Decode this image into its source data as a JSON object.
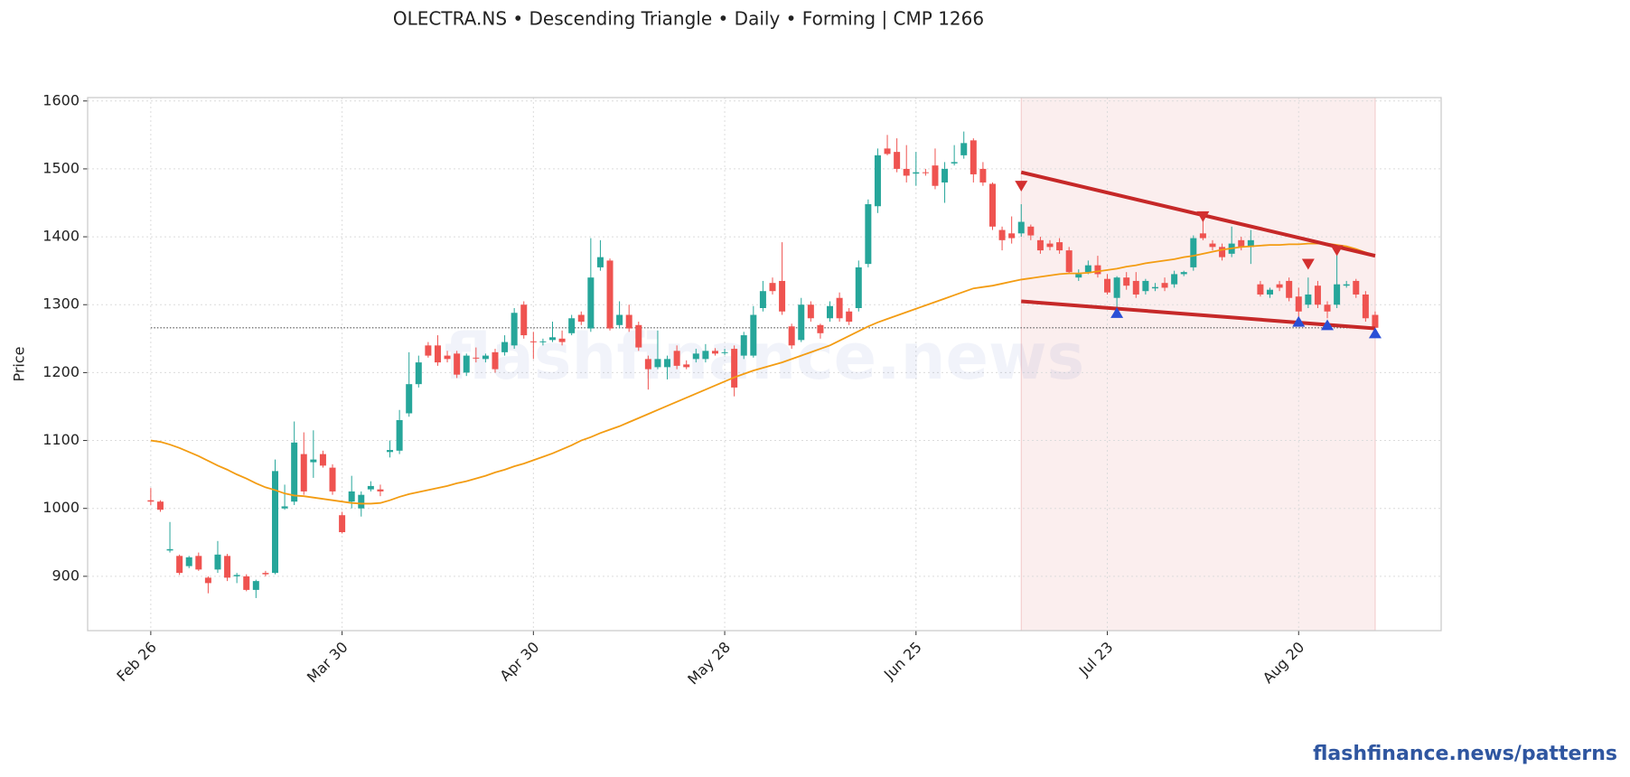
{
  "chart_data": {
    "type": "candlestick",
    "title": "OLECTRA.NS  •  Descending Triangle  •  Daily  •  Forming  |  CMP 1266",
    "ylabel": "Price",
    "watermark": "flashfinance.news",
    "footer": "flashfinance.news/patterns",
    "categories": [
      "Feb 26",
      null,
      null,
      null,
      null,
      null,
      null,
      null,
      null,
      null,
      null,
      null,
      null,
      null,
      null,
      null,
      null,
      null,
      null,
      null,
      "Mar 30",
      null,
      null,
      null,
      null,
      null,
      null,
      null,
      null,
      null,
      null,
      null,
      null,
      null,
      null,
      null,
      null,
      null,
      null,
      null,
      "Apr 30",
      null,
      null,
      null,
      null,
      null,
      null,
      null,
      null,
      null,
      null,
      null,
      null,
      null,
      null,
      null,
      null,
      null,
      null,
      null,
      "May 28",
      null,
      null,
      null,
      null,
      null,
      null,
      null,
      null,
      null,
      null,
      null,
      null,
      null,
      null,
      null,
      null,
      null,
      null,
      null,
      "Jun 25",
      null,
      null,
      null,
      null,
      null,
      null,
      null,
      null,
      null,
      null,
      null,
      null,
      null,
      null,
      null,
      null,
      null,
      null,
      null,
      "Jul 23",
      null,
      null,
      null,
      null,
      null,
      null,
      null,
      null,
      null,
      null,
      null,
      null,
      null,
      null,
      null,
      null,
      null,
      null,
      null,
      "Aug 20",
      null,
      null,
      null,
      null,
      null,
      null,
      null,
      null
    ],
    "open": [
      1012,
      1010,
      938,
      930,
      915,
      930,
      898,
      910,
      930,
      900,
      900,
      880,
      905,
      905,
      1000,
      1010,
      1080,
      1068,
      1080,
      1060,
      990,
      1010,
      1000,
      1028,
      1028,
      1083,
      1085,
      1140,
      1183,
      1240,
      1240,
      1225,
      1228,
      1200,
      1222,
      1220,
      1230,
      1230,
      1240,
      1300,
      1246,
      1245,
      1248,
      1250,
      1258,
      1285,
      1265,
      1355,
      1365,
      1270,
      1285,
      1270,
      1220,
      1208,
      1208,
      1232,
      1212,
      1220,
      1220,
      1232,
      1229,
      1235,
      1225,
      1225,
      1295,
      1332,
      1335,
      1268,
      1248,
      1300,
      1270,
      1280,
      1310,
      1290,
      1295,
      1360,
      1445,
      1530,
      1525,
      1500,
      1493,
      1495,
      1505,
      1480,
      1508,
      1520,
      1542,
      1500,
      1478,
      1410,
      1405,
      1405,
      1415,
      1395,
      1390,
      1392,
      1380,
      1340,
      1348,
      1358,
      1338,
      1310,
      1340,
      1335,
      1320,
      1324,
      1332,
      1330,
      1345,
      1355,
      1405,
      1390,
      1385,
      1375,
      1395,
      1385,
      1330,
      1315,
      1330,
      1335,
      1312,
      1300,
      1328,
      1300,
      1300,
      1328,
      1335,
      1315,
      1285
    ],
    "high": [
      1030,
      1012,
      980,
      932,
      930,
      935,
      900,
      952,
      933,
      905,
      903,
      895,
      908,
      1072,
      1035,
      1128,
      1112,
      1115,
      1085,
      1065,
      995,
      1048,
      1025,
      1040,
      1035,
      1100,
      1145,
      1230,
      1225,
      1245,
      1255,
      1232,
      1232,
      1228,
      1237,
      1228,
      1235,
      1255,
      1295,
      1305,
      1260,
      1250,
      1275,
      1262,
      1285,
      1290,
      1398,
      1395,
      1368,
      1305,
      1300,
      1275,
      1225,
      1262,
      1225,
      1240,
      1218,
      1235,
      1242,
      1236,
      1235,
      1240,
      1260,
      1298,
      1335,
      1340,
      1392,
      1272,
      1310,
      1305,
      1272,
      1305,
      1318,
      1295,
      1365,
      1455,
      1530,
      1550,
      1545,
      1535,
      1525,
      1500,
      1530,
      1510,
      1535,
      1555,
      1545,
      1510,
      1480,
      1415,
      1430,
      1448,
      1418,
      1400,
      1395,
      1398,
      1385,
      1352,
      1365,
      1372,
      1345,
      1342,
      1348,
      1348,
      1338,
      1332,
      1340,
      1350,
      1350,
      1402,
      1430,
      1395,
      1390,
      1415,
      1400,
      1410,
      1335,
      1325,
      1335,
      1340,
      1325,
      1340,
      1335,
      1305,
      1380,
      1335,
      1338,
      1320,
      1290
    ],
    "low": [
      1005,
      995,
      935,
      902,
      912,
      908,
      875,
      905,
      893,
      890,
      878,
      868,
      900,
      903,
      998,
      1005,
      1020,
      1045,
      1060,
      1020,
      963,
      1000,
      988,
      1025,
      1018,
      1075,
      1080,
      1135,
      1178,
      1222,
      1210,
      1215,
      1192,
      1195,
      1215,
      1215,
      1200,
      1225,
      1235,
      1250,
      1220,
      1240,
      1245,
      1240,
      1255,
      1270,
      1260,
      1350,
      1262,
      1265,
      1260,
      1232,
      1175,
      1205,
      1190,
      1205,
      1205,
      1215,
      1215,
      1225,
      1226,
      1165,
      1220,
      1222,
      1290,
      1315,
      1285,
      1235,
      1245,
      1275,
      1250,
      1275,
      1275,
      1270,
      1290,
      1355,
      1435,
      1520,
      1495,
      1480,
      1475,
      1490,
      1470,
      1450,
      1505,
      1515,
      1480,
      1475,
      1410,
      1380,
      1390,
      1400,
      1395,
      1375,
      1380,
      1375,
      1345,
      1335,
      1345,
      1340,
      1315,
      1290,
      1322,
      1310,
      1315,
      1320,
      1320,
      1325,
      1342,
      1350,
      1395,
      1380,
      1365,
      1370,
      1380,
      1360,
      1312,
      1310,
      1320,
      1305,
      1282,
      1295,
      1295,
      1280,
      1295,
      1325,
      1310,
      1275,
      1262
    ],
    "close": [
      1010,
      998,
      940,
      905,
      928,
      910,
      890,
      932,
      898,
      902,
      880,
      893,
      903,
      1055,
      1003,
      1097,
      1025,
      1072,
      1063,
      1025,
      965,
      1025,
      1020,
      1033,
      1025,
      1086,
      1130,
      1183,
      1215,
      1225,
      1215,
      1220,
      1197,
      1225,
      1221,
      1225,
      1205,
      1245,
      1288,
      1255,
      1245,
      1246,
      1252,
      1245,
      1280,
      1275,
      1340,
      1370,
      1265,
      1285,
      1265,
      1237,
      1205,
      1220,
      1220,
      1210,
      1208,
      1228,
      1232,
      1228,
      1230,
      1178,
      1255,
      1285,
      1320,
      1320,
      1290,
      1240,
      1300,
      1280,
      1258,
      1298,
      1280,
      1275,
      1355,
      1448,
      1520,
      1522,
      1500,
      1490,
      1495,
      1494,
      1475,
      1500,
      1510,
      1538,
      1492,
      1480,
      1415,
      1395,
      1398,
      1422,
      1402,
      1380,
      1385,
      1380,
      1348,
      1345,
      1358,
      1345,
      1318,
      1340,
      1328,
      1315,
      1335,
      1326,
      1325,
      1345,
      1348,
      1398,
      1398,
      1385,
      1370,
      1390,
      1385,
      1395,
      1315,
      1322,
      1325,
      1310,
      1290,
      1315,
      1300,
      1290,
      1330,
      1330,
      1315,
      1280,
      1266
    ],
    "up_color": "#26a69a",
    "down_color": "#ef5350",
    "ma": {
      "color": "#f39c12",
      "values": [
        1100,
        1098,
        1094,
        1089,
        1083,
        1077,
        1070,
        1063,
        1057,
        1050,
        1044,
        1037,
        1031,
        1027,
        1022,
        1019,
        1018,
        1016,
        1014,
        1012,
        1010,
        1008,
        1007,
        1007,
        1008,
        1012,
        1017,
        1021,
        1024,
        1027,
        1030,
        1033,
        1037,
        1040,
        1044,
        1048,
        1053,
        1057,
        1062,
        1066,
        1071,
        1076,
        1081,
        1087,
        1093,
        1100,
        1105,
        1111,
        1116,
        1121,
        1127,
        1133,
        1139,
        1145,
        1151,
        1157,
        1163,
        1169,
        1175,
        1181,
        1187,
        1193,
        1198,
        1203,
        1207,
        1211,
        1215,
        1220,
        1225,
        1230,
        1235,
        1240,
        1247,
        1254,
        1261,
        1268,
        1274,
        1279,
        1284,
        1289,
        1294,
        1299,
        1304,
        1309,
        1314,
        1319,
        1324,
        1326,
        1328,
        1331,
        1334,
        1337,
        1339,
        1341,
        1343,
        1345,
        1346,
        1346,
        1347,
        1349,
        1351,
        1353,
        1356,
        1358,
        1361,
        1363,
        1365,
        1367,
        1370,
        1372,
        1375,
        1378,
        1381,
        1383,
        1385,
        1386,
        1387,
        1388,
        1388,
        1389,
        1389,
        1390,
        1390,
        1390,
        1388,
        1386,
        1382,
        1377,
        1372
      ]
    },
    "cmp_line": 1266,
    "zone": {
      "x": [
        91,
        128
      ],
      "color": "#fbeeee"
    },
    "trendlines": [
      {
        "x": [
          91,
          128
        ],
        "y": [
          1495,
          1372
        ],
        "color": "#c62828"
      },
      {
        "x": [
          91,
          128
        ],
        "y": [
          1305,
          1265
        ],
        "color": "#c62828"
      }
    ],
    "swing_highs": {
      "x": [
        91,
        110,
        121,
        124
      ],
      "values": [
        1475,
        1430,
        1360,
        1380
      ],
      "color": "#d32f2f"
    },
    "swing_lows": {
      "x": [
        101,
        120,
        123,
        128
      ],
      "values": [
        1288,
        1275,
        1270,
        1258
      ],
      "color": "#2a4fd6"
    },
    "xlim": [
      -6.6,
      134.9
    ],
    "ylim": [
      820,
      1605
    ],
    "yticks": [
      900,
      1000,
      1100,
      1200,
      1300,
      1400,
      1500,
      1600
    ],
    "grid": true
  }
}
